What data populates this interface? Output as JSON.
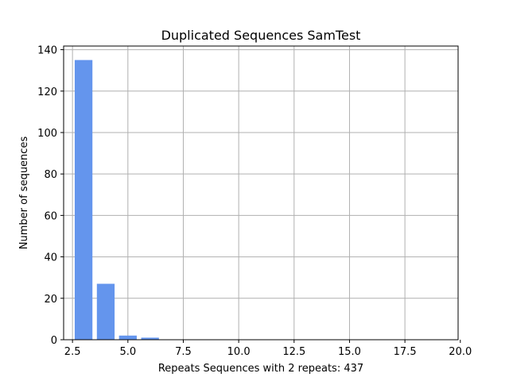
{
  "chart_data": {
    "type": "bar",
    "title": "Duplicated Sequences SamTest",
    "xlabel": "Repeats     Sequences with 2 repeats: 437",
    "ylabel": "Number of sequences",
    "x": [
      3,
      4,
      5,
      6,
      7,
      8,
      9,
      10,
      11,
      12,
      13,
      14,
      15,
      16,
      17,
      18,
      19
    ],
    "values": [
      135,
      27,
      2,
      1,
      0,
      0,
      0,
      0,
      0,
      0,
      0,
      0,
      0,
      0,
      0,
      0,
      0
    ],
    "bar_width": 0.8,
    "xlim": [
      2.1,
      19.9
    ],
    "ylim": [
      0,
      141.75
    ],
    "xticks": [
      2.5,
      5.0,
      7.5,
      10.0,
      12.5,
      15.0,
      17.5,
      20.0
    ],
    "xtick_labels": [
      "2.5",
      "5.0",
      "7.5",
      "10.0",
      "12.5",
      "15.0",
      "17.5",
      "20.0"
    ],
    "yticks": [
      0,
      20,
      40,
      60,
      80,
      100,
      120,
      140
    ],
    "ytick_labels": [
      "0",
      "20",
      "40",
      "60",
      "80",
      "100",
      "120",
      "140"
    ],
    "grid": true,
    "bar_color": "#6495ed",
    "grid_color": "#b0b0b0"
  }
}
